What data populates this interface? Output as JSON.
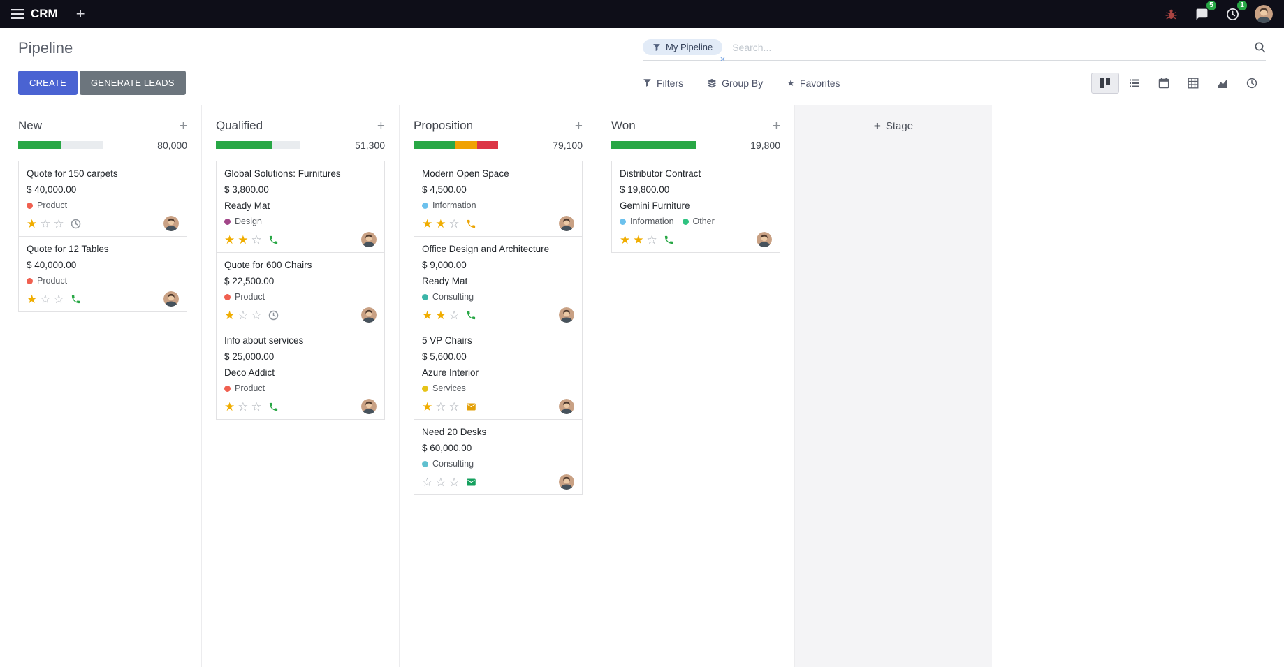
{
  "navbar": {
    "app_name": "CRM",
    "message_badge": "5",
    "activity_badge": "1"
  },
  "control": {
    "title": "Pipeline",
    "create_label": "CREATE",
    "generate_label": "GENERATE LEADS",
    "filters_label": "Filters",
    "group_by_label": "Group By",
    "favorites_label": "Favorites",
    "facet_label": "My Pipeline",
    "search_placeholder": "Search..."
  },
  "colors": {
    "navbar_bg": "#0e0e18",
    "primary": "#4a63d2",
    "secondary": "#6c757d",
    "badge": "#28a745",
    "star_gold": "#f0ad00",
    "success": "#28a745",
    "warning": "#f0a202",
    "danger": "#dc3545"
  },
  "kanban": {
    "add_stage_label": "Stage",
    "columns": [
      {
        "name": "New",
        "total": "80,000",
        "progress": [
          {
            "status": "success",
            "color": "#28a745",
            "pct": 50
          }
        ],
        "cards": [
          {
            "title": "Quote for 150 carpets",
            "amount": "$ 40,000.00",
            "partner": "",
            "tags": [
              {
                "label": "Product",
                "color": "#f06050"
              }
            ],
            "stars": 1,
            "activity": "clock",
            "activity_color": "#8f959c"
          },
          {
            "title": "Quote for 12 Tables",
            "amount": "$ 40,000.00",
            "partner": "",
            "tags": [
              {
                "label": "Product",
                "color": "#f06050"
              }
            ],
            "stars": 1,
            "activity": "phone",
            "activity_color": "#28a745"
          }
        ]
      },
      {
        "name": "Qualified",
        "total": "51,300",
        "progress": [
          {
            "status": "success",
            "color": "#28a745",
            "pct": 67
          }
        ],
        "cards": [
          {
            "title": "Global Solutions: Furnitures",
            "amount": "$ 3,800.00",
            "partner": "Ready Mat",
            "tags": [
              {
                "label": "Design",
                "color": "#a24689"
              }
            ],
            "stars": 2,
            "activity": "phone",
            "activity_color": "#28a745"
          },
          {
            "title": "Quote for 600 Chairs",
            "amount": "$ 22,500.00",
            "partner": "",
            "tags": [
              {
                "label": "Product",
                "color": "#f06050"
              }
            ],
            "stars": 1,
            "activity": "clock",
            "activity_color": "#8f959c"
          },
          {
            "title": "Info about services",
            "amount": "$ 25,000.00",
            "partner": "Deco Addict",
            "tags": [
              {
                "label": "Product",
                "color": "#f06050"
              }
            ],
            "stars": 1,
            "activity": "phone",
            "activity_color": "#28a745"
          }
        ]
      },
      {
        "name": "Proposition",
        "total": "79,100",
        "progress": [
          {
            "status": "success",
            "color": "#28a745",
            "pct": 49
          },
          {
            "status": "warning",
            "color": "#f0a202",
            "pct": 26
          },
          {
            "status": "danger",
            "color": "#dc3545",
            "pct": 25
          }
        ],
        "cards": [
          {
            "title": "Modern Open Space",
            "amount": "$ 4,500.00",
            "partner": "",
            "tags": [
              {
                "label": "Information",
                "color": "#6cc1ed"
              }
            ],
            "stars": 2,
            "activity": "phone",
            "activity_color": "#eca403"
          },
          {
            "title": "Office Design and Architecture",
            "amount": "$ 9,000.00",
            "partner": "Ready Mat",
            "tags": [
              {
                "label": "Consulting",
                "color": "#3bb5a8"
              }
            ],
            "stars": 2,
            "activity": "phone",
            "activity_color": "#28a745"
          },
          {
            "title": "5 VP Chairs",
            "amount": "$ 5,600.00",
            "partner": "Azure Interior",
            "tags": [
              {
                "label": "Services",
                "color": "#e6c317"
              }
            ],
            "stars": 1,
            "activity": "envelope",
            "activity_color": "#e3a008"
          },
          {
            "title": "Need 20 Desks",
            "amount": "$ 60,000.00",
            "partner": "",
            "tags": [
              {
                "label": "Consulting",
                "color": "#5fc0cf"
              }
            ],
            "stars": 0,
            "activity": "envelope",
            "activity_color": "#14a05e"
          }
        ]
      },
      {
        "name": "Won",
        "total": "19,800",
        "progress": [
          {
            "status": "success",
            "color": "#28a745",
            "pct": 100
          }
        ],
        "cards": [
          {
            "title": "Distributor Contract",
            "amount": "$ 19,800.00",
            "partner": "Gemini Furniture",
            "tags": [
              {
                "label": "Information",
                "color": "#6cc1ed"
              },
              {
                "label": "Other",
                "color": "#30c381"
              }
            ],
            "stars": 2,
            "activity": "phone",
            "activity_color": "#28a745"
          }
        ]
      }
    ]
  }
}
